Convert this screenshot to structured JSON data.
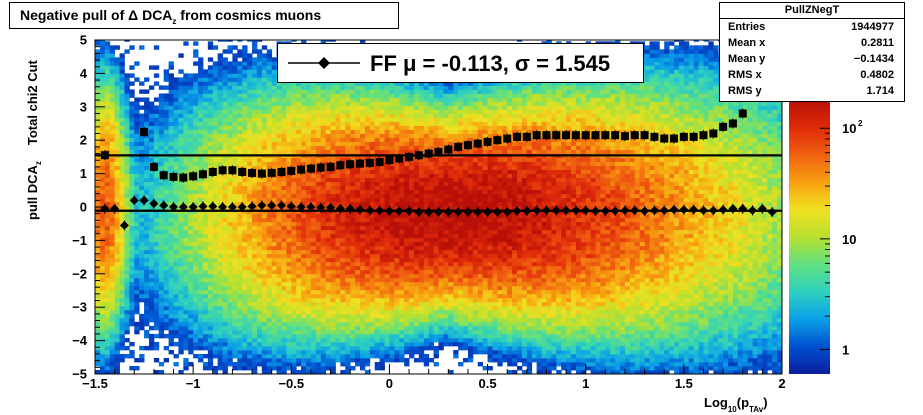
{
  "title": {
    "prefix": "Negative pull of ",
    "delta": "Δ",
    "dca": " DCA",
    "sub": "z",
    "suffix": "  from cosmics muons"
  },
  "stats": {
    "name": "PullZNegT",
    "rows": [
      {
        "key": "Entries",
        "value": "1944977"
      },
      {
        "key": "Mean x",
        "value": "0.2811"
      },
      {
        "key": "Mean y",
        "value": "−0.1434"
      },
      {
        "key": "RMS x",
        "value": "0.4802"
      },
      {
        "key": "RMS y",
        "value": "1.714"
      }
    ]
  },
  "legend": {
    "label": "FF μ = -0.113, σ =   1.545"
  },
  "axes": {
    "ylabel_main": "Total chi2 Cut",
    "ylabel_pull": "pull DCA",
    "ylabel_sub": "z",
    "xlabel_main": "Log",
    "xlabel_sub": "10",
    "xlabel_p": "(p",
    "xlabel_psub": "TAv",
    "xlabel_close": ")"
  },
  "colors": {
    "frame": "#000000",
    "marker": "#000000",
    "palette": [
      "#0a1f9e",
      "#0050d0",
      "#0aa0e8",
      "#2fd0c0",
      "#60e080",
      "#b8e030",
      "#f0e020",
      "#f8a010",
      "#f06010",
      "#e02a0a",
      "#b81008"
    ]
  },
  "chart_data": {
    "type": "heatmap",
    "x_range": [
      -1.5,
      2
    ],
    "y_range": [
      -5,
      5
    ],
    "x_ticks": [
      "−1.5",
      "−1",
      "−0.5",
      "0",
      "0.5",
      "1",
      "1.5",
      "2"
    ],
    "x_tick_values": [
      -1.5,
      -1,
      -0.5,
      0,
      0.5,
      1,
      1.5,
      2
    ],
    "y_ticks": [
      "−5",
      "−4",
      "−3",
      "−2",
      "−1",
      "0",
      "1",
      "2",
      "3",
      "4",
      "5"
    ],
    "y_tick_values": [
      -5,
      -4,
      -3,
      -2,
      -1,
      0,
      1,
      2,
      3,
      4,
      5
    ],
    "z_scale": "log",
    "z_ticks": [
      {
        "label": "1",
        "value": 1
      },
      {
        "label": "10",
        "value": 10
      },
      {
        "label": "10",
        "sup": "2",
        "value": 100
      }
    ],
    "z_range": [
      0.6,
      180
    ],
    "reference_lines": [
      {
        "y": 1.545,
        "from_x": -1.5,
        "to_x": 2
      },
      {
        "y": -0.113,
        "from_x": -1.5,
        "to_x": 2
      }
    ],
    "series": [
      {
        "role": "sigma",
        "x": [
          -1.45,
          -1.25,
          -1.2,
          -1.15,
          -1.1,
          -1.05,
          -1.0,
          -0.95,
          -0.9,
          -0.85,
          -0.8,
          -0.75,
          -0.7,
          -0.65,
          -0.6,
          -0.55,
          -0.5,
          -0.45,
          -0.4,
          -0.35,
          -0.3,
          -0.25,
          -0.2,
          -0.15,
          -0.1,
          -0.05,
          0.0,
          0.05,
          0.1,
          0.15,
          0.2,
          0.25,
          0.3,
          0.35,
          0.4,
          0.45,
          0.5,
          0.55,
          0.6,
          0.65,
          0.7,
          0.75,
          0.8,
          0.85,
          0.9,
          0.95,
          1.0,
          1.05,
          1.1,
          1.15,
          1.2,
          1.25,
          1.3,
          1.35,
          1.4,
          1.45,
          1.5,
          1.55,
          1.6,
          1.65,
          1.7,
          1.75,
          1.8
        ],
        "y": [
          1.55,
          2.25,
          1.2,
          0.95,
          0.9,
          0.88,
          0.92,
          0.98,
          1.05,
          1.1,
          1.1,
          1.05,
          1.02,
          1.0,
          1.02,
          1.05,
          1.08,
          1.12,
          1.15,
          1.18,
          1.2,
          1.25,
          1.28,
          1.3,
          1.32,
          1.35,
          1.4,
          1.45,
          1.5,
          1.55,
          1.6,
          1.65,
          1.72,
          1.8,
          1.85,
          1.9,
          1.95,
          2.0,
          2.05,
          2.1,
          2.1,
          2.15,
          2.15,
          2.15,
          2.15,
          2.15,
          2.15,
          2.15,
          2.15,
          2.15,
          2.12,
          2.15,
          2.15,
          2.1,
          2.05,
          2.05,
          2.1,
          2.1,
          2.15,
          2.2,
          2.4,
          2.5,
          2.8
        ],
        "x_top": [
          1.85
        ],
        "y_top": [
          4.35
        ]
      },
      {
        "role": "mean",
        "x": [
          -1.45,
          -1.4,
          -1.35,
          -1.3,
          -1.25,
          -1.2,
          -1.15,
          -1.1,
          -1.05,
          -1.0,
          -0.95,
          -0.9,
          -0.85,
          -0.8,
          -0.75,
          -0.7,
          -0.65,
          -0.6,
          -0.55,
          -0.5,
          -0.45,
          -0.4,
          -0.35,
          -0.3,
          -0.25,
          -0.2,
          -0.15,
          -0.1,
          -0.05,
          0.0,
          0.05,
          0.1,
          0.15,
          0.2,
          0.25,
          0.3,
          0.35,
          0.4,
          0.45,
          0.5,
          0.55,
          0.6,
          0.65,
          0.7,
          0.75,
          0.8,
          0.85,
          0.9,
          0.95,
          1.0,
          1.05,
          1.1,
          1.15,
          1.2,
          1.25,
          1.3,
          1.35,
          1.4,
          1.45,
          1.5,
          1.55,
          1.6,
          1.65,
          1.7,
          1.75,
          1.8,
          1.85,
          1.9,
          1.95
        ],
        "y": [
          -0.05,
          -0.05,
          -0.55,
          0.2,
          0.2,
          0.1,
          0.05,
          0.0,
          0.0,
          0.0,
          0.02,
          0.02,
          0.0,
          0.0,
          0.0,
          0.02,
          0.05,
          0.05,
          0.05,
          0.02,
          0.0,
          0.0,
          -0.02,
          -0.02,
          -0.05,
          -0.05,
          -0.08,
          -0.1,
          -0.1,
          -0.12,
          -0.12,
          -0.12,
          -0.15,
          -0.15,
          -0.15,
          -0.15,
          -0.15,
          -0.15,
          -0.15,
          -0.15,
          -0.15,
          -0.15,
          -0.12,
          -0.12,
          -0.1,
          -0.1,
          -0.1,
          -0.1,
          -0.1,
          -0.1,
          -0.12,
          -0.12,
          -0.12,
          -0.1,
          -0.1,
          -0.12,
          -0.1,
          -0.1,
          -0.08,
          -0.08,
          -0.08,
          -0.1,
          -0.1,
          -0.08,
          -0.05,
          -0.05,
          -0.1,
          -0.05,
          -0.15
        ]
      }
    ]
  }
}
